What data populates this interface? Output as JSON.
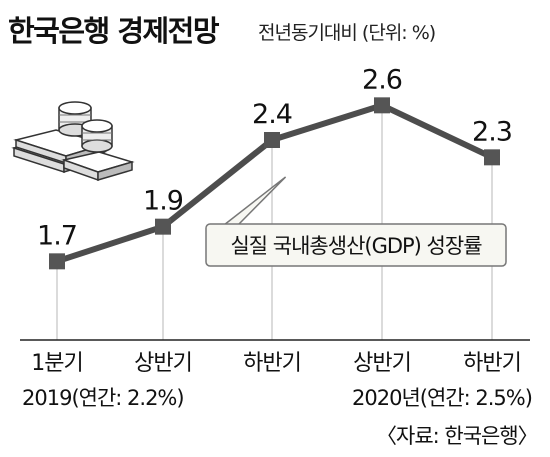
{
  "header": {
    "title": "한국은행 경제전망",
    "subtitle": "전년동기대비 (단위: %)"
  },
  "chart_data": {
    "type": "line",
    "categories": [
      "1분기",
      "상반기",
      "하반기",
      "상반기",
      "하반기"
    ],
    "series": [
      {
        "name": "실질 국내총생산(GDP) 성장률",
        "values": [
          1.7,
          1.9,
          2.4,
          2.6,
          2.3
        ]
      }
    ],
    "value_labels": [
      "1.7",
      "1.9",
      "2.4",
      "2.6",
      "2.3"
    ],
    "ylim": [
      1.5,
      2.7
    ],
    "grid": "vertical dropdown lines",
    "legend_callout": "실질 국내총생산(GDP) 성장률",
    "colors": {
      "line": "#4d4d4d",
      "marker": "#555555",
      "grid": "#cfcfcf",
      "callout_fill": "#f7f7f2"
    }
  },
  "footer": {
    "year_2019": "2019(연간: 2.2%)",
    "year_2020": "2020년(연간: 2.5%)",
    "source": "〈자료: 한국은행〉"
  },
  "illustration": {
    "icon": "stacked-money-coins-icon"
  }
}
